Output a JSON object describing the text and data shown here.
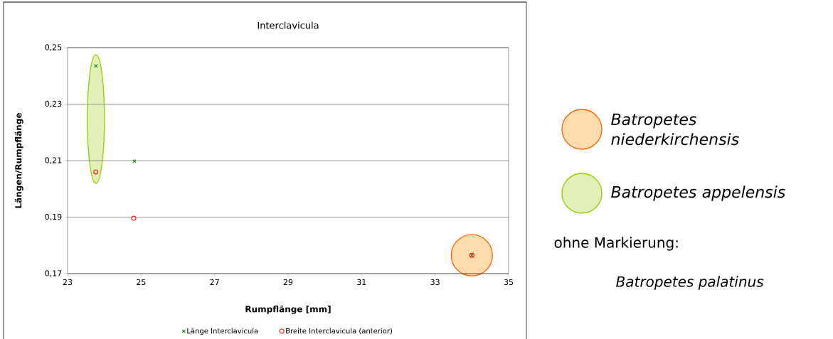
{
  "chart_data": {
    "type": "scatter",
    "title": "Interclavicula",
    "xlabel": "Rumpflänge [mm]",
    "ylabel": "Längen/Rumpflänge",
    "series": [
      {
        "name": "Länge Interclavicula",
        "color": "#008000",
        "marker": "cross",
        "x": [
          23.77,
          24.82,
          34.0
        ],
        "values": [
          0.2435,
          0.2098,
          0.1765
        ]
      },
      {
        "name": "Breite Interclavicula (anterior)",
        "color": "#ff0000",
        "marker": "circle",
        "x": [
          23.77,
          24.8,
          34.0
        ],
        "values": [
          0.206,
          0.1896,
          0.1765
        ]
      }
    ],
    "xlim": [
      23,
      35
    ],
    "xticks": [
      23,
      25,
      27,
      29,
      31,
      33,
      35
    ],
    "ylim": [
      0.17,
      0.25
    ],
    "yticks": [
      {
        "value": 0.17,
        "label": "0,17"
      },
      {
        "value": 0.19,
        "label": "0,19"
      },
      {
        "value": 0.21,
        "label": "0,21"
      },
      {
        "value": 0.23,
        "label": "0,23"
      },
      {
        "value": 0.25,
        "label": "0,25"
      }
    ],
    "grid": "y",
    "legend": "bottom",
    "annotations": [
      "Batropetes niederkirchensis",
      "Batropetes appelensis",
      "ohne Markierung:",
      "Batropetes palatinus"
    ]
  }
}
